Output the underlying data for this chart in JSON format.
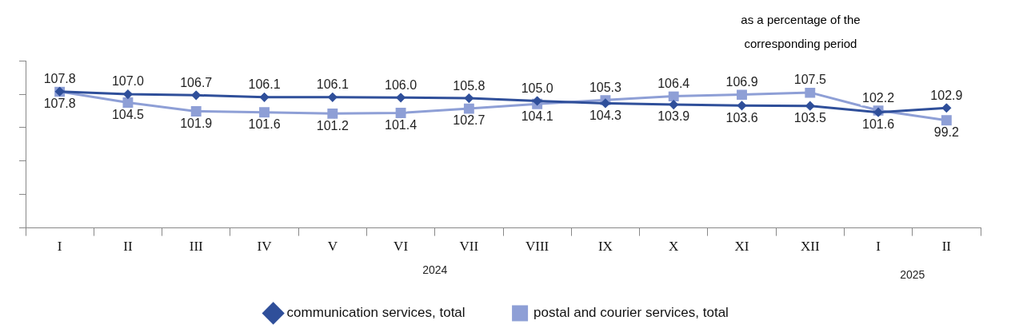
{
  "chart_data": {
    "type": "line",
    "title": "as a percentage of the corresponding period",
    "categories": [
      "I",
      "II",
      "III",
      "IV",
      "V",
      "VI",
      "VII",
      "VIII",
      "IX",
      "X",
      "XI",
      "XII",
      "I",
      "II"
    ],
    "series": [
      {
        "name": "communication services, total",
        "color": "#2f4f9a",
        "values": [
          107.8,
          107.0,
          106.7,
          106.1,
          106.1,
          106.0,
          105.8,
          105.0,
          104.3,
          103.9,
          103.6,
          103.5,
          101.6,
          102.9
        ],
        "value_labels": [
          "107.8",
          "107.0",
          "106.7",
          "106.1",
          "106.1",
          "106.0",
          "105.8",
          "105.0",
          "104.3",
          "103.9",
          "103.6",
          "103.5",
          "101.6",
          "102.9"
        ]
      },
      {
        "name": "postal and courier services, total",
        "color": "#8e9fd6",
        "marker": "square",
        "values": [
          107.8,
          104.5,
          101.9,
          101.6,
          101.2,
          101.4,
          102.7,
          104.1,
          105.3,
          106.4,
          106.9,
          107.5,
          102.2,
          99.2
        ],
        "value_labels": [
          "107.8",
          "104.5",
          "101.9",
          "101.6",
          "101.2",
          "101.4",
          "102.7",
          "104.1",
          "105.3",
          "106.4",
          "106.9",
          "107.5",
          "102.2",
          "99.2"
        ]
      }
    ],
    "ylim": [
      67,
      117
    ],
    "yticks": [
      {
        "value": 67,
        "label": null
      },
      {
        "value": 77,
        "label": null
      },
      {
        "value": 87,
        "label": null
      },
      {
        "value": 97,
        "label": null
      },
      {
        "value": 107,
        "label": null
      },
      {
        "value": 117,
        "label": null
      }
    ],
    "tick_labels": "x",
    "legend": "bottom",
    "marker": "diamond",
    "grid": false,
    "annotations": [
      "2024",
      "2025"
    ]
  }
}
